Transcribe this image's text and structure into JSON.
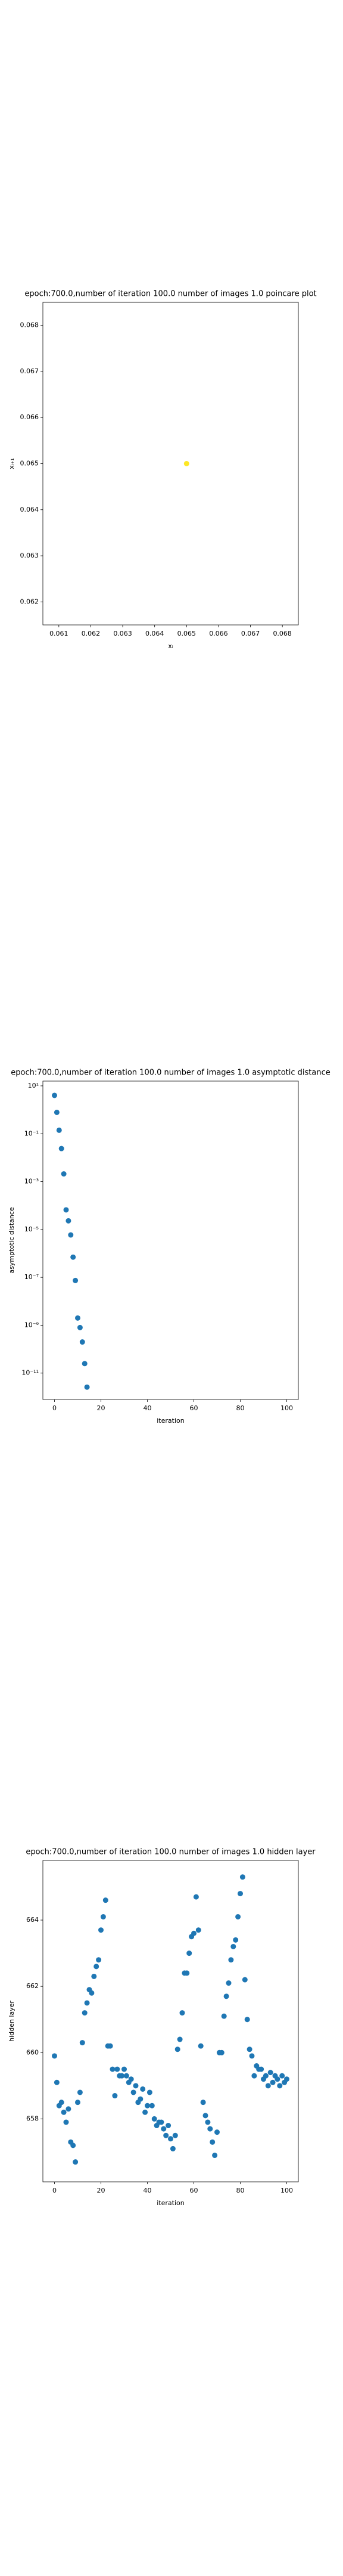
{
  "chart_data": [
    {
      "type": "scatter",
      "title": "epoch:700.0,number of iteration 100.0 number of images 1.0 poincare plot",
      "xlabel": "xᵢ",
      "ylabel": "xᵢ₊₁",
      "color": "#fde725",
      "x": [
        0.065
      ],
      "values": [
        0.065
      ],
      "xlim": [
        0.0605,
        0.0685
      ],
      "xticks": [
        0.061,
        0.062,
        0.063,
        0.064,
        0.065,
        0.066,
        0.067,
        0.068
      ],
      "ylim": [
        0.0615,
        0.0685
      ],
      "yticks": [
        0.062,
        0.063,
        0.064,
        0.065,
        0.066,
        0.067,
        0.068
      ]
    },
    {
      "type": "scatter",
      "title": "epoch:700.0,number of iteration 100.0  number of images 1.0 asymptotic distance",
      "xlabel": "iteration",
      "ylabel": "asymptotic distance",
      "color": "#1f77b4",
      "ylog": true,
      "x": [
        0,
        1,
        2,
        3,
        4,
        5,
        6,
        7,
        8,
        9,
        10,
        11,
        12,
        13,
        14
      ],
      "values": [
        4,
        0.78,
        0.14,
        0.024,
        0.0021,
        6.6e-05,
        2.3e-05,
        5.9e-06,
        7e-07,
        7.4e-08,
        2e-09,
        8e-10,
        2e-10,
        2.5e-11,
        2.6e-12
      ],
      "xlim": [
        -5,
        105
      ],
      "xticks": [
        0,
        20,
        40,
        60,
        80,
        100
      ],
      "ylim": [
        7.9e-13,
        15.8
      ],
      "yticks": [
        {
          "value": 10,
          "label": "10¹"
        },
        {
          "value": 0.1,
          "label": "10⁻¹"
        },
        {
          "value": 0.001,
          "label": "10⁻³"
        },
        {
          "value": 1e-05,
          "label": "10⁻⁵"
        },
        {
          "value": 1e-07,
          "label": "10⁻⁷"
        },
        {
          "value": 1e-09,
          "label": "10⁻⁹"
        },
        {
          "value": 1e-11,
          "label": "10⁻¹¹"
        }
      ]
    },
    {
      "type": "scatter",
      "title": "epoch:700.0,number of iteration 100.0  number of images 1.0 hidden layer",
      "xlabel": "iteration",
      "ylabel": "hidden layer",
      "color": "#1f77b4",
      "x": [
        0,
        1,
        2,
        3,
        4,
        5,
        6,
        7,
        8,
        9,
        10,
        11,
        12,
        13,
        14,
        15,
        16,
        17,
        18,
        19,
        20,
        21,
        22,
        23,
        24,
        25,
        26,
        27,
        28,
        29,
        30,
        31,
        32,
        33,
        34,
        35,
        36,
        37,
        38,
        39,
        40,
        41,
        42,
        43,
        44,
        45,
        46,
        47,
        48,
        49,
        50,
        51,
        52,
        53,
        54,
        55,
        56,
        57,
        58,
        59,
        60,
        61,
        62,
        63,
        64,
        65,
        66,
        67,
        68,
        69,
        70,
        71,
        72,
        73,
        74,
        75,
        76,
        77,
        78,
        79,
        80,
        81,
        82,
        83,
        84,
        85,
        86,
        87,
        88,
        89,
        90,
        91,
        92,
        93,
        94,
        95,
        96,
        97,
        98,
        99,
        100
      ],
      "values": [
        659.9,
        659.1,
        658.4,
        658.5,
        658.2,
        657.9,
        658.3,
        657.3,
        657.2,
        656.7,
        658.5,
        658.8,
        660.3,
        661.2,
        661.5,
        661.9,
        661.8,
        662.3,
        662.6,
        662.8,
        663.7,
        664.1,
        664.6,
        660.2,
        660.2,
        659.5,
        658.7,
        659.5,
        659.3,
        659.3,
        659.5,
        659.3,
        659.1,
        659.2,
        658.8,
        659.0,
        658.5,
        658.6,
        658.9,
        658.2,
        658.4,
        658.8,
        658.4,
        658.0,
        657.8,
        657.9,
        657.9,
        657.7,
        657.5,
        657.8,
        657.4,
        657.1,
        657.5,
        660.1,
        660.4,
        661.2,
        662.4,
        662.4,
        663.0,
        663.5,
        663.6,
        664.7,
        663.7,
        660.2,
        658.5,
        658.1,
        657.9,
        657.7,
        657.3,
        656.9,
        657.6,
        660.0,
        660.0,
        661.1,
        661.7,
        662.1,
        662.8,
        663.2,
        663.4,
        664.1,
        664.8,
        665.3,
        662.2,
        661.0,
        660.1,
        659.9,
        659.3,
        659.6,
        659.5,
        659.5,
        659.2,
        659.3,
        659.0,
        659.4,
        659.1,
        659.3,
        659.2,
        659.0,
        659.3,
        659.1,
        659.2
      ],
      "xlim": [
        -5,
        105
      ],
      "xticks": [
        0,
        20,
        40,
        60,
        80,
        100
      ],
      "ylim": [
        656.1,
        665.8
      ],
      "yticks": [
        658,
        660,
        662,
        664
      ]
    }
  ]
}
